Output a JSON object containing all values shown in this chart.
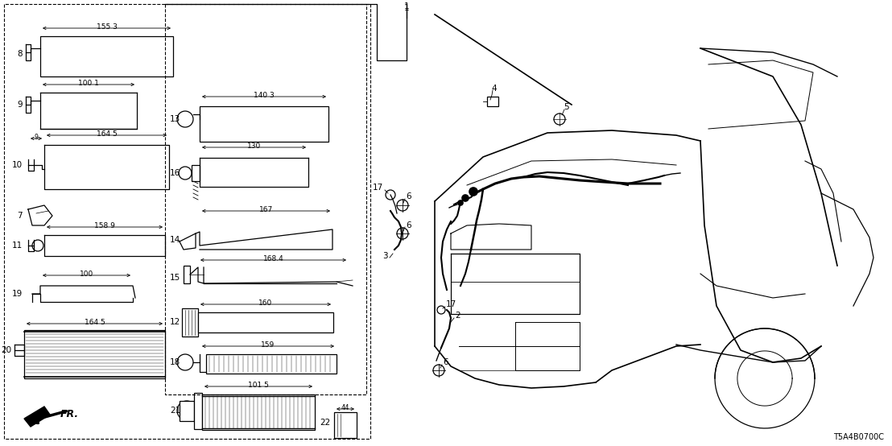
{
  "bg_color": "#ffffff",
  "line_color": "#000000",
  "fig_width": 11.08,
  "fig_height": 5.54,
  "dpi": 100,
  "part_number": "T5A4B0700C"
}
